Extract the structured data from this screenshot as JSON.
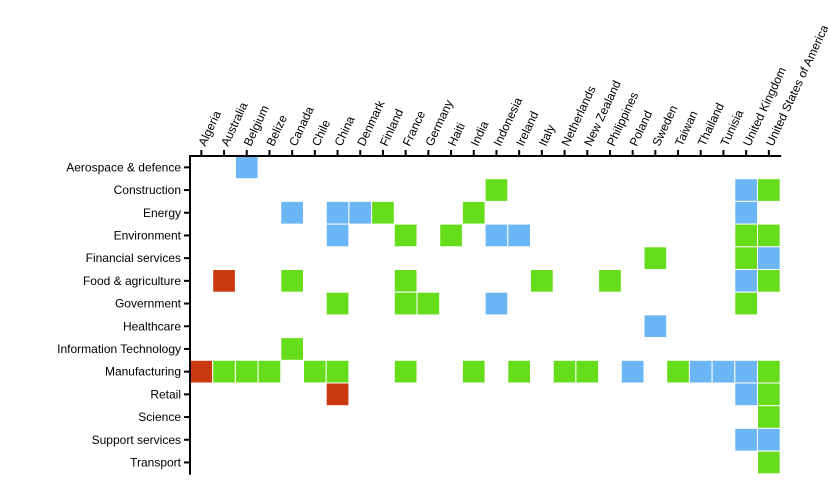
{
  "chart_data": {
    "type": "heatmap",
    "title": "",
    "xlabel": "",
    "ylabel": "",
    "x_axis_position": "top",
    "grid": false,
    "legend": "none",
    "x": [
      "Algeria",
      "Australia",
      "Belgium",
      "Belize",
      "Canada",
      "Chile",
      "China",
      "Denmark",
      "Finland",
      "France",
      "Germany",
      "Haiti",
      "India",
      "Indonesia",
      "Ireland",
      "Italy",
      "Netherlands",
      "New Zealand",
      "Philippines",
      "Poland",
      "Sweden",
      "Taiwan",
      "Thailand",
      "Tunisia",
      "United Kingdom",
      "United States of America"
    ],
    "y": [
      "Aerospace & defence",
      "Construction",
      "Energy",
      "Environment",
      "Financial services",
      "Food & agriculture",
      "Government",
      "Healthcare",
      "Information Technology",
      "Manufacturing",
      "Retail",
      "Science",
      "Support services",
      "Transport"
    ],
    "colors": {
      "blue": "#6bb7f5",
      "green": "#66dd1b",
      "red": "#c9380f"
    },
    "cells": [
      {
        "x": "Belgium",
        "y": "Aerospace & defence",
        "color": "blue"
      },
      {
        "x": "Indonesia",
        "y": "Construction",
        "color": "green"
      },
      {
        "x": "United Kingdom",
        "y": "Construction",
        "color": "blue"
      },
      {
        "x": "United States of America",
        "y": "Construction",
        "color": "green"
      },
      {
        "x": "Canada",
        "y": "Energy",
        "color": "blue"
      },
      {
        "x": "China",
        "y": "Energy",
        "color": "blue"
      },
      {
        "x": "Denmark",
        "y": "Energy",
        "color": "blue"
      },
      {
        "x": "Finland",
        "y": "Energy",
        "color": "green"
      },
      {
        "x": "India",
        "y": "Energy",
        "color": "green"
      },
      {
        "x": "United Kingdom",
        "y": "Energy",
        "color": "blue"
      },
      {
        "x": "China",
        "y": "Environment",
        "color": "blue"
      },
      {
        "x": "France",
        "y": "Environment",
        "color": "green"
      },
      {
        "x": "Haiti",
        "y": "Environment",
        "color": "green"
      },
      {
        "x": "Indonesia",
        "y": "Environment",
        "color": "blue"
      },
      {
        "x": "Ireland",
        "y": "Environment",
        "color": "blue"
      },
      {
        "x": "United Kingdom",
        "y": "Environment",
        "color": "green"
      },
      {
        "x": "United States of America",
        "y": "Environment",
        "color": "green"
      },
      {
        "x": "Sweden",
        "y": "Financial services",
        "color": "green"
      },
      {
        "x": "United Kingdom",
        "y": "Financial services",
        "color": "green"
      },
      {
        "x": "United States of America",
        "y": "Financial services",
        "color": "blue"
      },
      {
        "x": "Australia",
        "y": "Food & agriculture",
        "color": "red"
      },
      {
        "x": "Canada",
        "y": "Food & agriculture",
        "color": "green"
      },
      {
        "x": "France",
        "y": "Food & agriculture",
        "color": "green"
      },
      {
        "x": "Italy",
        "y": "Food & agriculture",
        "color": "green"
      },
      {
        "x": "Philippines",
        "y": "Food & agriculture",
        "color": "green"
      },
      {
        "x": "United Kingdom",
        "y": "Food & agriculture",
        "color": "blue"
      },
      {
        "x": "United States of America",
        "y": "Food & agriculture",
        "color": "green"
      },
      {
        "x": "China",
        "y": "Government",
        "color": "green"
      },
      {
        "x": "France",
        "y": "Government",
        "color": "green"
      },
      {
        "x": "Germany",
        "y": "Government",
        "color": "green"
      },
      {
        "x": "Indonesia",
        "y": "Government",
        "color": "blue"
      },
      {
        "x": "United Kingdom",
        "y": "Government",
        "color": "green"
      },
      {
        "x": "Sweden",
        "y": "Healthcare",
        "color": "blue"
      },
      {
        "x": "Canada",
        "y": "Information Technology",
        "color": "green"
      },
      {
        "x": "Algeria",
        "y": "Manufacturing",
        "color": "red"
      },
      {
        "x": "Australia",
        "y": "Manufacturing",
        "color": "green"
      },
      {
        "x": "Belgium",
        "y": "Manufacturing",
        "color": "green"
      },
      {
        "x": "Belize",
        "y": "Manufacturing",
        "color": "green"
      },
      {
        "x": "Chile",
        "y": "Manufacturing",
        "color": "green"
      },
      {
        "x": "China",
        "y": "Manufacturing",
        "color": "green"
      },
      {
        "x": "France",
        "y": "Manufacturing",
        "color": "green"
      },
      {
        "x": "India",
        "y": "Manufacturing",
        "color": "green"
      },
      {
        "x": "Ireland",
        "y": "Manufacturing",
        "color": "green"
      },
      {
        "x": "Netherlands",
        "y": "Manufacturing",
        "color": "green"
      },
      {
        "x": "New Zealand",
        "y": "Manufacturing",
        "color": "green"
      },
      {
        "x": "Poland",
        "y": "Manufacturing",
        "color": "blue"
      },
      {
        "x": "Taiwan",
        "y": "Manufacturing",
        "color": "green"
      },
      {
        "x": "Thailand",
        "y": "Manufacturing",
        "color": "blue"
      },
      {
        "x": "Tunisia",
        "y": "Manufacturing",
        "color": "blue"
      },
      {
        "x": "United Kingdom",
        "y": "Manufacturing",
        "color": "blue"
      },
      {
        "x": "United States of America",
        "y": "Manufacturing",
        "color": "green"
      },
      {
        "x": "China",
        "y": "Retail",
        "color": "red"
      },
      {
        "x": "United Kingdom",
        "y": "Retail",
        "color": "blue"
      },
      {
        "x": "United States of America",
        "y": "Retail",
        "color": "green"
      },
      {
        "x": "United States of America",
        "y": "Science",
        "color": "green"
      },
      {
        "x": "United Kingdom",
        "y": "Support services",
        "color": "blue"
      },
      {
        "x": "United States of America",
        "y": "Support services",
        "color": "blue"
      },
      {
        "x": "United States of America",
        "y": "Transport",
        "color": "green"
      }
    ]
  }
}
